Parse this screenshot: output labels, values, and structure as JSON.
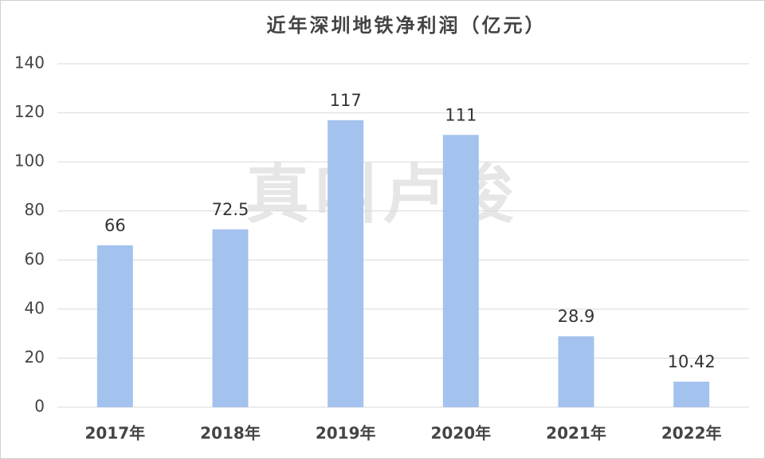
{
  "chart_data": {
    "type": "bar",
    "title": "近年深圳地铁净利润（亿元）",
    "categories": [
      "2017年",
      "2018年",
      "2019年",
      "2020年",
      "2021年",
      "2022年"
    ],
    "values": [
      66,
      72.5,
      117,
      111,
      28.9,
      10.42
    ],
    "color": "#a4c2ee",
    "ylim": [
      0,
      140
    ],
    "yticks": [
      0,
      20,
      40,
      60,
      80,
      100,
      120,
      140
    ],
    "grid": true,
    "watermark": "真叫卢俊"
  }
}
